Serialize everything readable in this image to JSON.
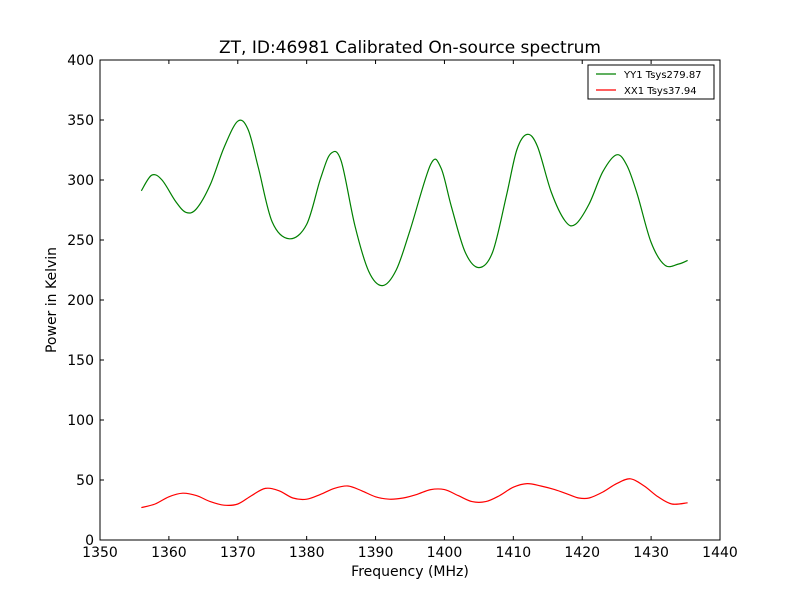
{
  "chart_data": {
    "type": "line",
    "title": "ZT, ID:46981 Calibrated On-source spectrum",
    "xlabel": "Frequency (MHz)",
    "ylabel": "Power in Kelvin",
    "xlim": [
      1350,
      1440
    ],
    "ylim": [
      0,
      400
    ],
    "xticks": [
      1350,
      1360,
      1370,
      1380,
      1390,
      1400,
      1410,
      1420,
      1430,
      1440
    ],
    "yticks": [
      0,
      50,
      100,
      150,
      200,
      250,
      300,
      350,
      400
    ],
    "grid": false,
    "legend_position": "top-right",
    "series": [
      {
        "name": "YY1 Tsys279.87",
        "color": "#008000",
        "x": [
          1356,
          1357.5,
          1359,
          1361,
          1362.5,
          1364,
          1366,
          1368,
          1370,
          1371.5,
          1373,
          1375,
          1377.5,
          1380,
          1382,
          1383.5,
          1385,
          1387,
          1389,
          1391,
          1393,
          1395,
          1398,
          1399.5,
          1401,
          1403,
          1405,
          1407,
          1409,
          1410.5,
          1412,
          1413.5,
          1415.5,
          1417.5,
          1419,
          1421,
          1423,
          1425,
          1426.5,
          1428,
          1430,
          1432,
          1434,
          1435.3
        ],
        "y": [
          291,
          304,
          300,
          282,
          273,
          276,
          296,
          327,
          349,
          342,
          310,
          265,
          251,
          263,
          301,
          322,
          316,
          262,
          224,
          212,
          225,
          258,
          313,
          310,
          278,
          240,
          227,
          240,
          287,
          325,
          338,
          328,
          290,
          266,
          263,
          280,
          307,
          321,
          312,
          288,
          248,
          229,
          230,
          233
        ]
      },
      {
        "name": "XX1 Tsys37.94",
        "color": "#ff0000",
        "x": [
          1356,
          1358,
          1360,
          1362,
          1364,
          1366,
          1368,
          1370,
          1372,
          1374,
          1376,
          1378,
          1380,
          1382,
          1384,
          1386,
          1388,
          1390,
          1392,
          1394,
          1396,
          1398,
          1400,
          1402,
          1404,
          1406,
          1408,
          1410,
          1412,
          1414,
          1416,
          1418,
          1419.5,
          1421,
          1423,
          1425,
          1427,
          1429,
          1431,
          1433,
          1435.3
        ],
        "y": [
          27,
          30,
          36,
          39,
          37,
          32,
          29,
          30,
          37,
          43,
          41,
          35,
          34,
          38,
          43,
          45,
          41,
          36,
          34,
          35,
          38,
          42,
          42,
          37,
          32,
          32,
          37,
          44,
          47,
          45,
          42,
          38,
          35,
          35,
          40,
          47,
          51,
          45,
          36,
          30,
          31
        ]
      }
    ]
  }
}
